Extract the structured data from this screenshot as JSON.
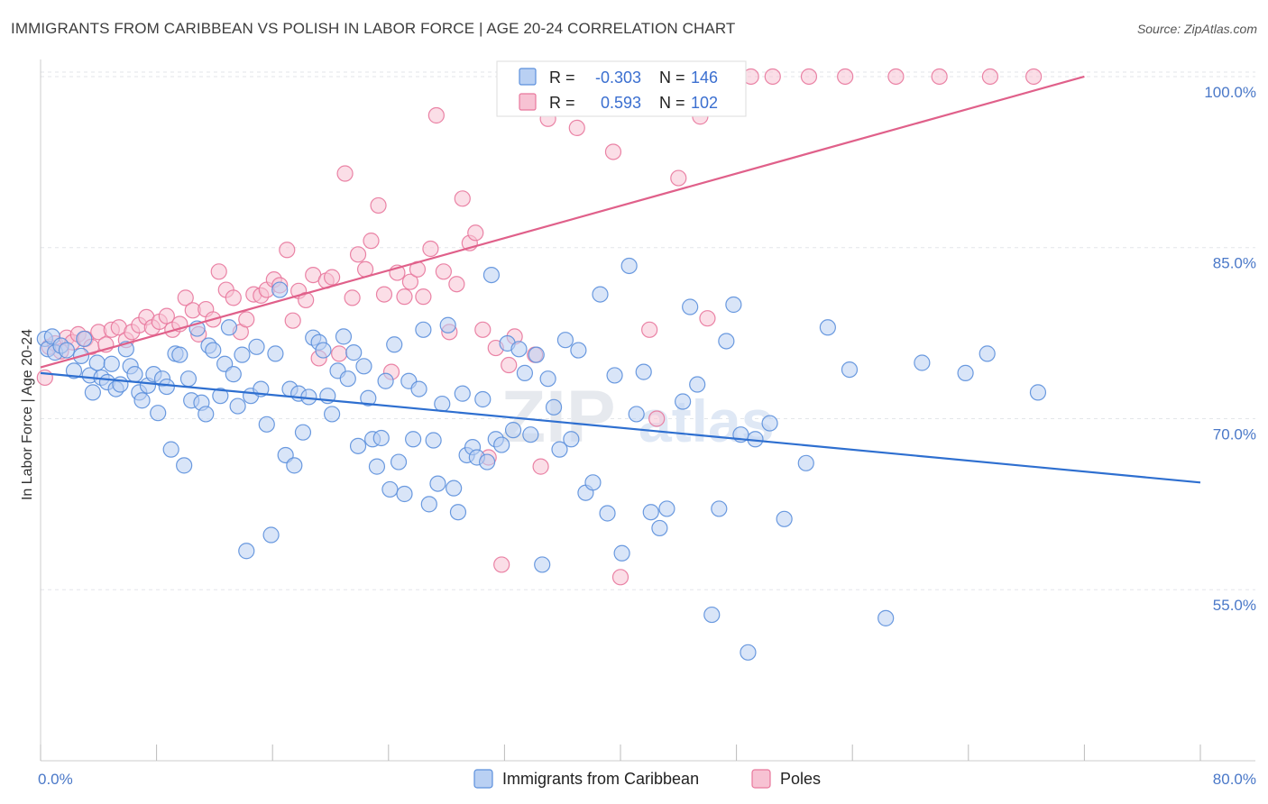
{
  "title": "IMMIGRANTS FROM CARIBBEAN VS POLISH IN LABOR FORCE | AGE 20-24 CORRELATION CHART",
  "source": "Source: ZipAtlas.com",
  "watermark": {
    "zip": "ZIP",
    "atlas": "atlas"
  },
  "colors": {
    "blue": "#5b8fdc",
    "blue_fill": "#b9d0f3",
    "pink": "#e8779c",
    "pink_fill": "#f7c2d3",
    "blue_line": "#2e6fd0",
    "pink_line": "#e0608a"
  },
  "legend": {
    "rows": [
      {
        "r_label": "R =",
        "r_value": "-0.303",
        "n_label": "N =",
        "n_value": "146"
      },
      {
        "r_label": "R =",
        "r_value": "0.593",
        "n_label": "N =",
        "n_value": "102"
      }
    ],
    "bottom": [
      "Immigrants from Caribbean",
      "Poles"
    ]
  },
  "chart_data": {
    "type": "scatter",
    "ylabel": "In Labor Force | Age 20-24",
    "x_tick_labels": [
      "0.0%",
      "80.0%"
    ],
    "y_tick_labels": [
      "100.0%",
      "85.0%",
      "70.0%",
      "55.0%"
    ],
    "xlim": [
      0,
      80
    ],
    "ylim": [
      40,
      101.5
    ],
    "y_ticks": [
      100,
      85,
      70,
      55
    ],
    "grid": true,
    "series": [
      {
        "name": "Immigrants from Caribbean",
        "trend": {
          "x": [
            0,
            80
          ],
          "y": [
            74.0,
            64.4
          ]
        },
        "points": [
          [
            0.3,
            77.0
          ],
          [
            0.5,
            76.1
          ],
          [
            0.8,
            77.2
          ],
          [
            1.0,
            75.8
          ],
          [
            1.4,
            76.4
          ],
          [
            1.8,
            76.0
          ],
          [
            2.3,
            74.2
          ],
          [
            2.8,
            75.5
          ],
          [
            3.0,
            77.0
          ],
          [
            3.4,
            73.8
          ],
          [
            3.6,
            72.3
          ],
          [
            3.9,
            74.9
          ],
          [
            4.2,
            73.6
          ],
          [
            4.6,
            73.2
          ],
          [
            4.9,
            74.8
          ],
          [
            5.2,
            72.6
          ],
          [
            5.5,
            73.0
          ],
          [
            5.9,
            76.1
          ],
          [
            6.2,
            74.6
          ],
          [
            6.5,
            73.9
          ],
          [
            6.8,
            72.3
          ],
          [
            7.0,
            71.6
          ],
          [
            7.4,
            72.9
          ],
          [
            7.8,
            73.9
          ],
          [
            8.1,
            70.5
          ],
          [
            8.4,
            73.5
          ],
          [
            8.7,
            72.8
          ],
          [
            9.0,
            67.3
          ],
          [
            9.3,
            75.7
          ],
          [
            9.6,
            75.6
          ],
          [
            9.9,
            65.9
          ],
          [
            10.2,
            73.5
          ],
          [
            10.4,
            71.6
          ],
          [
            10.8,
            77.9
          ],
          [
            11.1,
            71.4
          ],
          [
            11.4,
            70.4
          ],
          [
            11.6,
            76.4
          ],
          [
            11.9,
            76.0
          ],
          [
            12.4,
            72.0
          ],
          [
            12.7,
            74.8
          ],
          [
            13.0,
            78.0
          ],
          [
            13.3,
            73.9
          ],
          [
            13.6,
            71.1
          ],
          [
            13.9,
            75.6
          ],
          [
            14.2,
            58.4
          ],
          [
            14.5,
            72.0
          ],
          [
            14.9,
            76.3
          ],
          [
            15.2,
            72.6
          ],
          [
            15.6,
            69.5
          ],
          [
            15.9,
            59.8
          ],
          [
            16.2,
            75.7
          ],
          [
            16.5,
            81.3
          ],
          [
            16.9,
            66.8
          ],
          [
            17.2,
            72.6
          ],
          [
            17.5,
            65.9
          ],
          [
            17.8,
            72.2
          ],
          [
            18.1,
            68.8
          ],
          [
            18.5,
            71.9
          ],
          [
            18.8,
            77.1
          ],
          [
            19.2,
            76.7
          ],
          [
            19.5,
            76.0
          ],
          [
            19.8,
            72.0
          ],
          [
            20.1,
            70.4
          ],
          [
            20.5,
            74.2
          ],
          [
            20.9,
            77.2
          ],
          [
            21.2,
            73.5
          ],
          [
            21.6,
            75.8
          ],
          [
            21.9,
            67.6
          ],
          [
            22.3,
            74.6
          ],
          [
            22.6,
            71.8
          ],
          [
            22.9,
            68.2
          ],
          [
            23.2,
            65.8
          ],
          [
            23.5,
            68.3
          ],
          [
            23.8,
            73.3
          ],
          [
            24.1,
            63.8
          ],
          [
            24.4,
            76.5
          ],
          [
            24.7,
            66.2
          ],
          [
            25.1,
            63.4
          ],
          [
            25.4,
            73.3
          ],
          [
            25.7,
            68.2
          ],
          [
            26.1,
            72.6
          ],
          [
            26.4,
            77.8
          ],
          [
            26.8,
            62.5
          ],
          [
            27.1,
            68.1
          ],
          [
            27.4,
            64.3
          ],
          [
            27.7,
            71.3
          ],
          [
            28.1,
            78.2
          ],
          [
            28.5,
            63.9
          ],
          [
            28.8,
            61.8
          ],
          [
            29.1,
            72.2
          ],
          [
            29.4,
            66.8
          ],
          [
            29.8,
            67.5
          ],
          [
            30.1,
            66.6
          ],
          [
            30.5,
            71.7
          ],
          [
            30.8,
            66.2
          ],
          [
            31.1,
            82.6
          ],
          [
            31.4,
            68.2
          ],
          [
            31.8,
            67.7
          ],
          [
            32.2,
            76.6
          ],
          [
            32.6,
            69.0
          ],
          [
            33.0,
            76.1
          ],
          [
            33.4,
            74.0
          ],
          [
            33.8,
            68.6
          ],
          [
            34.2,
            75.6
          ],
          [
            34.6,
            57.2
          ],
          [
            35.0,
            73.5
          ],
          [
            35.4,
            71.0
          ],
          [
            35.8,
            67.3
          ],
          [
            36.2,
            76.9
          ],
          [
            36.6,
            68.2
          ],
          [
            37.1,
            76.0
          ],
          [
            37.6,
            63.5
          ],
          [
            38.1,
            64.4
          ],
          [
            38.6,
            80.9
          ],
          [
            39.1,
            61.7
          ],
          [
            39.6,
            73.8
          ],
          [
            40.1,
            58.2
          ],
          [
            40.6,
            83.4
          ],
          [
            41.1,
            70.4
          ],
          [
            41.6,
            74.1
          ],
          [
            42.1,
            61.8
          ],
          [
            42.7,
            60.4
          ],
          [
            43.2,
            62.1
          ],
          [
            44.3,
            71.5
          ],
          [
            44.8,
            79.8
          ],
          [
            45.3,
            73.0
          ],
          [
            46.3,
            52.8
          ],
          [
            46.8,
            62.1
          ],
          [
            47.3,
            76.8
          ],
          [
            47.8,
            80.0
          ],
          [
            48.3,
            68.6
          ],
          [
            48.8,
            49.5
          ],
          [
            49.3,
            68.2
          ],
          [
            50.3,
            69.6
          ],
          [
            51.3,
            61.2
          ],
          [
            52.8,
            66.1
          ],
          [
            54.3,
            78.0
          ],
          [
            55.8,
            74.3
          ],
          [
            58.3,
            52.5
          ],
          [
            60.8,
            74.9
          ],
          [
            63.8,
            74.0
          ],
          [
            65.3,
            75.7
          ],
          [
            68.8,
            72.3
          ]
        ]
      },
      {
        "name": "Poles",
        "trend": {
          "x": [
            0,
            72
          ],
          "y": [
            74.5,
            100.0
          ]
        },
        "points": [
          [
            0.3,
            73.6
          ],
          [
            0.6,
            76.3
          ],
          [
            1.0,
            76.6
          ],
          [
            1.4,
            75.9
          ],
          [
            1.8,
            77.1
          ],
          [
            2.2,
            76.7
          ],
          [
            2.6,
            77.4
          ],
          [
            3.1,
            77.0
          ],
          [
            3.5,
            76.3
          ],
          [
            4.0,
            77.6
          ],
          [
            4.5,
            76.5
          ],
          [
            4.9,
            77.8
          ],
          [
            5.4,
            78.0
          ],
          [
            5.9,
            76.9
          ],
          [
            6.3,
            77.6
          ],
          [
            6.8,
            78.2
          ],
          [
            7.3,
            78.9
          ],
          [
            7.7,
            78.0
          ],
          [
            8.2,
            78.5
          ],
          [
            8.7,
            79.0
          ],
          [
            9.1,
            77.8
          ],
          [
            9.6,
            78.3
          ],
          [
            10.0,
            80.6
          ],
          [
            10.5,
            79.5
          ],
          [
            10.9,
            77.4
          ],
          [
            11.4,
            79.6
          ],
          [
            11.9,
            78.7
          ],
          [
            12.3,
            82.9
          ],
          [
            12.8,
            81.3
          ],
          [
            13.3,
            80.6
          ],
          [
            13.8,
            77.6
          ],
          [
            14.2,
            78.7
          ],
          [
            14.7,
            80.9
          ],
          [
            15.2,
            80.8
          ],
          [
            15.6,
            81.3
          ],
          [
            16.1,
            82.2
          ],
          [
            16.5,
            81.7
          ],
          [
            17.0,
            84.8
          ],
          [
            17.4,
            78.6
          ],
          [
            17.8,
            81.2
          ],
          [
            18.3,
            80.4
          ],
          [
            18.8,
            82.6
          ],
          [
            19.2,
            75.3
          ],
          [
            19.7,
            82.1
          ],
          [
            20.1,
            82.4
          ],
          [
            20.6,
            75.7
          ],
          [
            21.0,
            91.5
          ],
          [
            21.5,
            80.6
          ],
          [
            21.9,
            84.4
          ],
          [
            22.4,
            83.1
          ],
          [
            22.8,
            85.6
          ],
          [
            23.3,
            88.7
          ],
          [
            23.7,
            80.9
          ],
          [
            24.2,
            74.1
          ],
          [
            24.6,
            82.8
          ],
          [
            25.1,
            80.7
          ],
          [
            25.5,
            82.0
          ],
          [
            26.0,
            83.1
          ],
          [
            26.4,
            80.7
          ],
          [
            26.9,
            84.9
          ],
          [
            27.3,
            96.6
          ],
          [
            27.8,
            82.9
          ],
          [
            28.2,
            77.6
          ],
          [
            28.7,
            81.8
          ],
          [
            29.1,
            89.3
          ],
          [
            29.6,
            85.4
          ],
          [
            30.0,
            86.3
          ],
          [
            30.5,
            77.8
          ],
          [
            30.9,
            66.6
          ],
          [
            31.4,
            76.2
          ],
          [
            31.8,
            57.2
          ],
          [
            32.3,
            74.7
          ],
          [
            32.7,
            77.2
          ],
          [
            33.2,
            100.0
          ],
          [
            33.6,
            100.0
          ],
          [
            34.1,
            75.6
          ],
          [
            34.5,
            65.8
          ],
          [
            35.0,
            96.3
          ],
          [
            35.5,
            100.0
          ],
          [
            36.0,
            98.2
          ],
          [
            36.5,
            100.0
          ],
          [
            37.0,
            95.5
          ],
          [
            38.0,
            100.0
          ],
          [
            39.5,
            93.4
          ],
          [
            40.0,
            56.1
          ],
          [
            40.5,
            100.0
          ],
          [
            42.0,
            77.8
          ],
          [
            42.5,
            70.0
          ],
          [
            43.5,
            100.0
          ],
          [
            44.0,
            91.1
          ],
          [
            45.5,
            96.5
          ],
          [
            46.0,
            78.8
          ],
          [
            47.0,
            100.0
          ],
          [
            48.0,
            100.0
          ],
          [
            49.0,
            100.0
          ],
          [
            50.5,
            100.0
          ],
          [
            53.0,
            100.0
          ],
          [
            55.5,
            100.0
          ],
          [
            59.0,
            100.0
          ],
          [
            62.0,
            100.0
          ],
          [
            65.5,
            100.0
          ],
          [
            68.5,
            100.0
          ]
        ]
      }
    ]
  }
}
